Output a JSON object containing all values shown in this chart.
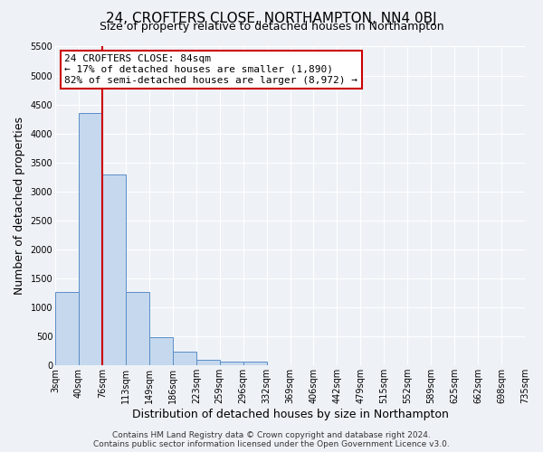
{
  "title": "24, CROFTERS CLOSE, NORTHAMPTON, NN4 0BJ",
  "subtitle": "Size of property relative to detached houses in Northampton",
  "xlabel": "Distribution of detached houses by size in Northampton",
  "ylabel": "Number of detached properties",
  "bar_values": [
    1270,
    4350,
    3300,
    1270,
    480,
    230,
    100,
    70,
    60,
    0,
    0,
    0,
    0,
    0,
    0,
    0,
    0,
    0,
    0,
    0
  ],
  "tick_labels": [
    "3sqm",
    "40sqm",
    "76sqm",
    "113sqm",
    "149sqm",
    "186sqm",
    "223sqm",
    "259sqm",
    "296sqm",
    "332sqm",
    "369sqm",
    "406sqm",
    "442sqm",
    "479sqm",
    "515sqm",
    "552sqm",
    "589sqm",
    "625sqm",
    "662sqm",
    "698sqm",
    "735sqm"
  ],
  "ylim": [
    0,
    5500
  ],
  "yticks": [
    0,
    500,
    1000,
    1500,
    2000,
    2500,
    3000,
    3500,
    4000,
    4500,
    5000,
    5500
  ],
  "bar_color": "#c5d8ed",
  "bar_edge_color": "#5b8dc8",
  "vline_x_index": 2,
  "vline_color": "#cc0000",
  "annotation_title": "24 CROFTERS CLOSE: 84sqm",
  "annotation_line1": "← 17% of detached houses are smaller (1,890)",
  "annotation_line2": "82% of semi-detached houses are larger (8,972) →",
  "annotation_box_color": "#ffffff",
  "annotation_box_edge": "#cc0000",
  "footer_line1": "Contains HM Land Registry data © Crown copyright and database right 2024.",
  "footer_line2": "Contains public sector information licensed under the Open Government Licence v3.0.",
  "background_color": "#eef2f7",
  "grid_color": "#ffffff",
  "title_fontsize": 11,
  "subtitle_fontsize": 9,
  "axis_label_fontsize": 9,
  "tick_fontsize": 7,
  "footer_fontsize": 6.5,
  "annotation_fontsize": 8
}
